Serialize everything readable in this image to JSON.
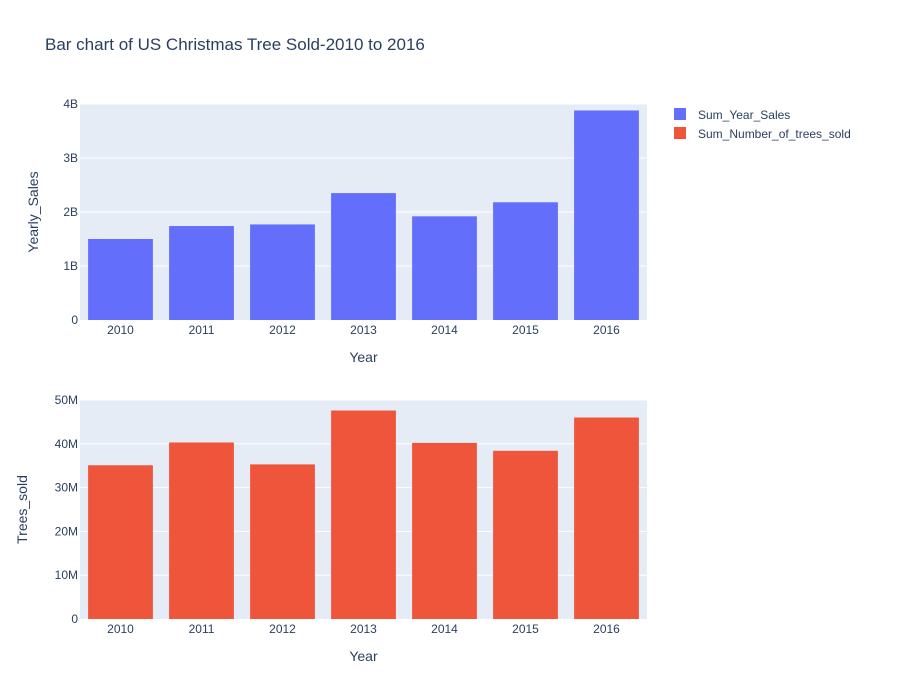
{
  "page": {
    "title": "Bar chart of US Christmas Tree Sold-2010 to 2016"
  },
  "legend": {
    "placement": "top-right",
    "items": [
      {
        "label": "Sum_Year_Sales",
        "color": "#636efa"
      },
      {
        "label": "Sum_Number_of_trees_sold",
        "color": "#ef553b"
      }
    ]
  },
  "chart_data": [
    {
      "type": "bar",
      "categories": [
        "2010",
        "2011",
        "2012",
        "2013",
        "2014",
        "2015",
        "2016"
      ],
      "series": [
        {
          "name": "Sum_Year_Sales",
          "values": [
            1500000000,
            1740000000,
            1770000000,
            2350000000,
            1920000000,
            2180000000,
            3880000000
          ],
          "color": "#636efa"
        }
      ],
      "xlabel": "Year",
      "ylabel": "Yearly_Sales",
      "ylim": [
        0,
        4000000000
      ],
      "yticks": [
        0,
        1000000000,
        2000000000,
        3000000000,
        4000000000
      ],
      "ytick_labels": [
        "0",
        "1B",
        "2B",
        "3B",
        "4B"
      ],
      "grid": true
    },
    {
      "type": "bar",
      "categories": [
        "2010",
        "2011",
        "2012",
        "2013",
        "2014",
        "2015",
        "2016"
      ],
      "series": [
        {
          "name": "Sum_Number_of_trees_sold",
          "values": [
            35100000,
            40300000,
            35300000,
            47600000,
            40200000,
            38400000,
            46000000
          ],
          "color": "#ef553b"
        }
      ],
      "xlabel": "Year",
      "ylabel": "Trees_sold",
      "ylim": [
        0,
        50000000
      ],
      "yticks": [
        0,
        10000000,
        20000000,
        30000000,
        40000000,
        50000000
      ],
      "ytick_labels": [
        "0",
        "10M",
        "20M",
        "30M",
        "40M",
        "50M"
      ],
      "grid": true
    }
  ]
}
